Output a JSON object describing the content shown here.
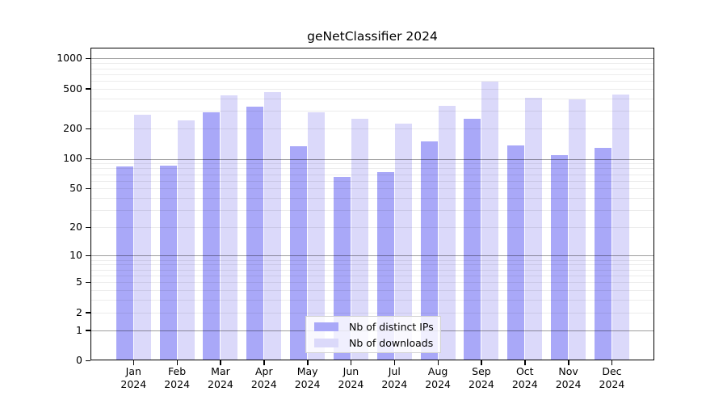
{
  "chart_data": {
    "type": "bar",
    "title": "geNetClassifier 2024",
    "categories": [
      "Jan",
      "Feb",
      "Mar",
      "Apr",
      "May",
      "Jun",
      "Jul",
      "Aug",
      "Sep",
      "Oct",
      "Nov",
      "Dec"
    ],
    "category_year": "2024",
    "series": [
      {
        "name": "Nb of distinct IPs",
        "color": "#a9a8f8",
        "values": [
          83,
          86,
          289,
          332,
          133,
          65,
          74,
          148,
          251,
          137,
          109,
          128
        ]
      },
      {
        "name": "Nb of downloads",
        "color": "#dbd9fa",
        "values": [
          274,
          244,
          427,
          462,
          290,
          251,
          226,
          337,
          592,
          405,
          393,
          436
        ]
      }
    ],
    "y_axis": {
      "scale": "log10(1+value)",
      "tick_labels": [
        0,
        1,
        2,
        5,
        10,
        20,
        50,
        100,
        200,
        500,
        1000
      ],
      "major_gridlines": [
        1,
        10,
        100,
        1000
      ],
      "minor_gridlines": [
        2,
        3,
        4,
        5,
        6,
        7,
        8,
        9,
        20,
        30,
        40,
        50,
        60,
        70,
        80,
        90,
        200,
        300,
        400,
        500,
        600,
        700,
        800,
        900
      ],
      "ymax": 1000
    },
    "grid": "on",
    "legend_position": "inside-bottom-center"
  }
}
